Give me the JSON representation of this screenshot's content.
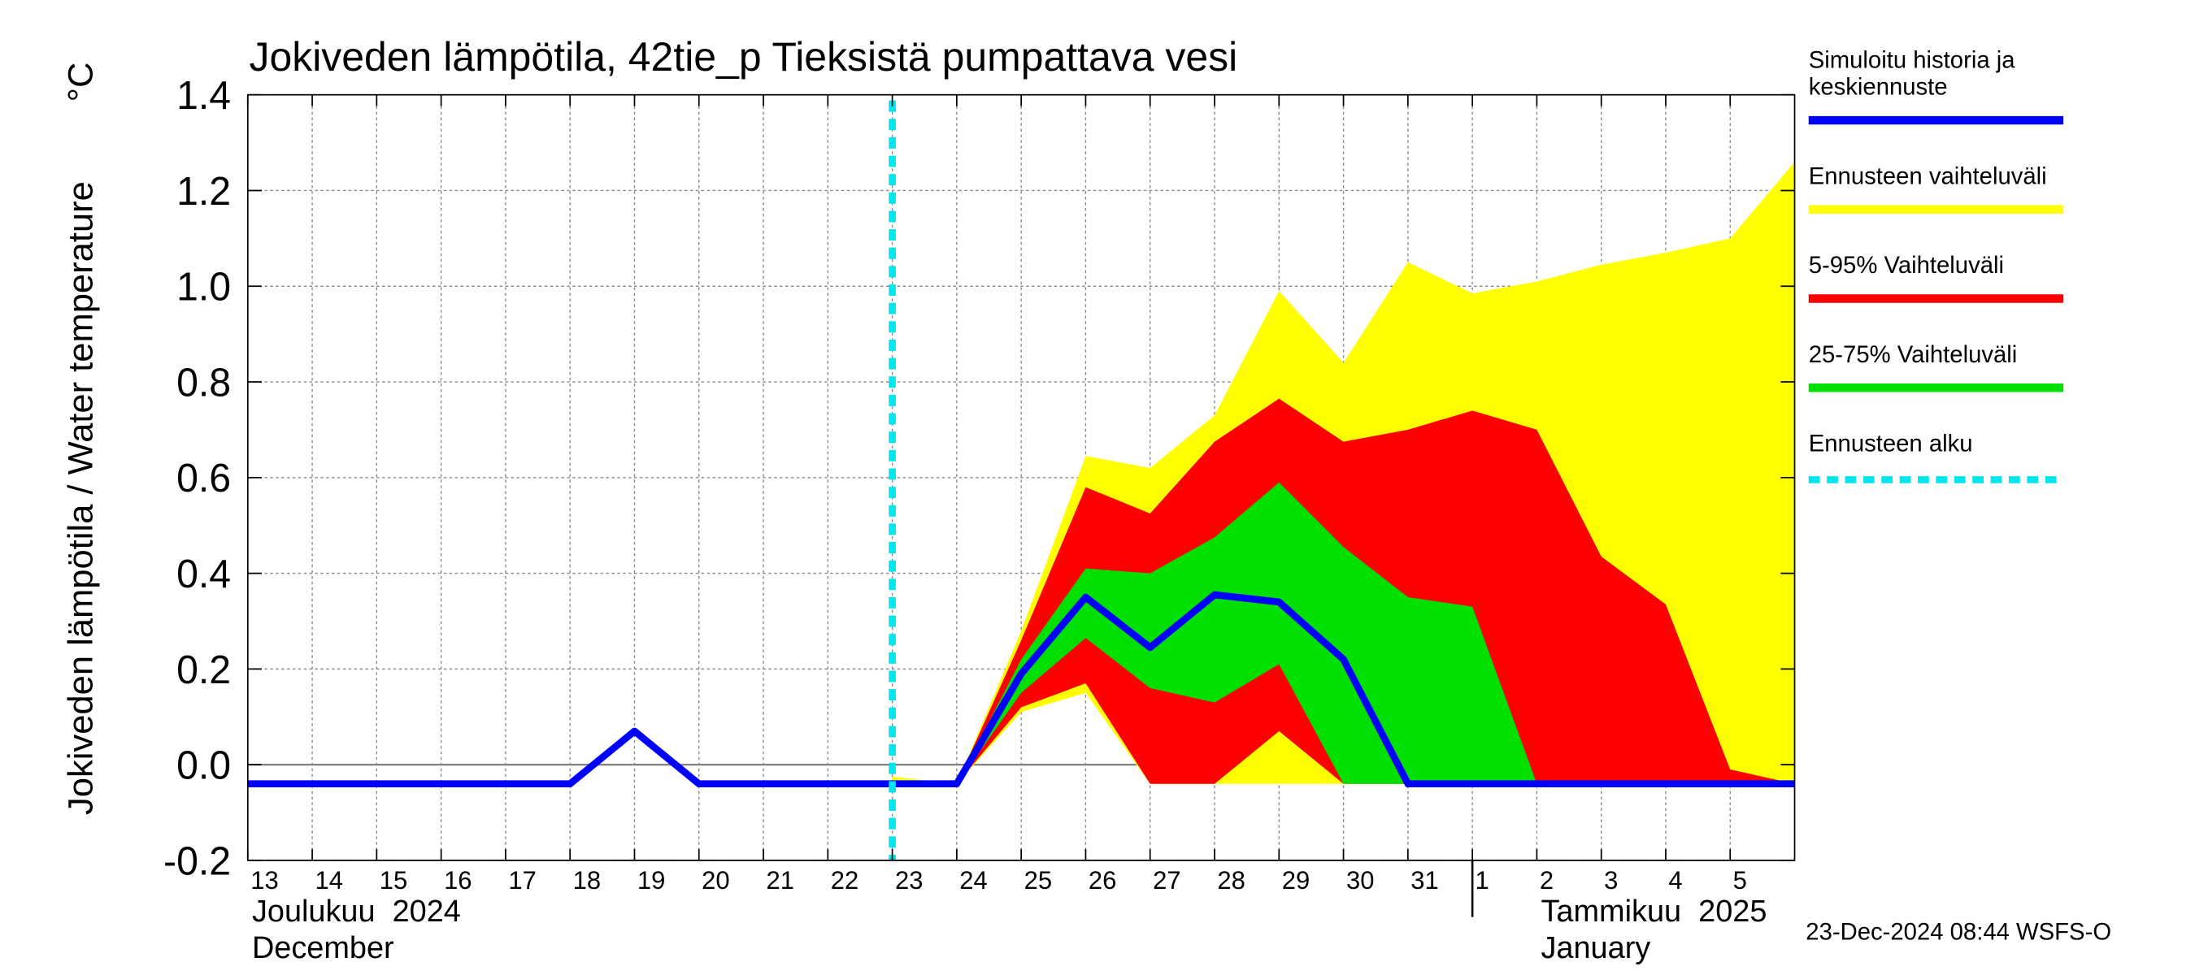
{
  "chart_data": {
    "type": "band",
    "title": "Jokiveden lämpötila, 42tie_p Tieksistä pumpattava vesi",
    "ylabel": "Jokiveden lämpötila / Water temperature",
    "yunit": "°C",
    "footer": "23-Dec-2024 08:44 WSFS-O",
    "x": [
      "2024-12-13",
      "2024-12-14",
      "2024-12-15",
      "2024-12-16",
      "2024-12-17",
      "2024-12-18",
      "2024-12-19",
      "2024-12-20",
      "2024-12-21",
      "2024-12-22",
      "2024-12-23",
      "2024-12-24",
      "2024-12-25",
      "2024-12-26",
      "2024-12-27",
      "2024-12-28",
      "2024-12-29",
      "2024-12-30",
      "2024-12-31",
      "2025-01-01",
      "2025-01-02",
      "2025-01-03",
      "2025-01-04",
      "2025-01-05",
      "2025-01-06"
    ],
    "xlim": [
      "2024-12-13",
      "2025-01-06"
    ],
    "xticks": [
      {
        "value": "2024-12-13",
        "label": "13"
      },
      {
        "value": "2024-12-14",
        "label": "14"
      },
      {
        "value": "2024-12-15",
        "label": "15"
      },
      {
        "value": "2024-12-16",
        "label": "16"
      },
      {
        "value": "2024-12-17",
        "label": "17"
      },
      {
        "value": "2024-12-18",
        "label": "18"
      },
      {
        "value": "2024-12-19",
        "label": "19"
      },
      {
        "value": "2024-12-20",
        "label": "20"
      },
      {
        "value": "2024-12-21",
        "label": "21"
      },
      {
        "value": "2024-12-22",
        "label": "22"
      },
      {
        "value": "2024-12-23",
        "label": "23"
      },
      {
        "value": "2024-12-24",
        "label": "24"
      },
      {
        "value": "2024-12-25",
        "label": "25"
      },
      {
        "value": "2024-12-26",
        "label": "26"
      },
      {
        "value": "2024-12-27",
        "label": "27"
      },
      {
        "value": "2024-12-28",
        "label": "28"
      },
      {
        "value": "2024-12-29",
        "label": "29"
      },
      {
        "value": "2024-12-30",
        "label": "30"
      },
      {
        "value": "2024-12-31",
        "label": "31"
      },
      {
        "value": "2025-01-01",
        "label": "1"
      },
      {
        "value": "2025-01-02",
        "label": "2"
      },
      {
        "value": "2025-01-03",
        "label": "3"
      },
      {
        "value": "2025-01-04",
        "label": "4"
      },
      {
        "value": "2025-01-05",
        "label": "5"
      }
    ],
    "month_labels": [
      {
        "date": "2024-12-13",
        "label": "Joulukuu  2024",
        "label_en": "December"
      },
      {
        "date": "2025-01-01",
        "label": "Tammikuu  2025",
        "label_en": "January"
      }
    ],
    "ylim": [
      -0.2,
      1.4
    ],
    "yticks": [
      -0.2,
      {
        "value": 0,
        "label": "0.0"
      },
      0.2,
      0.4,
      0.6,
      0.8,
      {
        "value": 1,
        "label": "1.0"
      },
      1.2,
      1.4
    ],
    "grid": true,
    "forecast_start": {
      "name": "Ennusteen alku",
      "color": "#00e5ee",
      "x": "2024-12-23"
    },
    "series": [
      {
        "name": "Simuloitu historia ja\nkeskiennuste",
        "color": "#0000ff",
        "values": [
          -0.04,
          -0.04,
          -0.04,
          -0.04,
          -0.04,
          -0.04,
          0.07,
          -0.04,
          -0.04,
          -0.04,
          -0.04,
          -0.04,
          0.19,
          0.35,
          0.245,
          0.355,
          0.34,
          0.22,
          -0.04,
          -0.04,
          -0.04,
          -0.04,
          -0.04,
          -0.04,
          -0.04
        ]
      },
      {
        "name": "Ennusteen vaihteluväli",
        "color": "#ffff00",
        "values": [
          null,
          null,
          null,
          null,
          null,
          null,
          null,
          null,
          null,
          null,
          -0.025,
          -0.04,
          0.28,
          0.645,
          0.62,
          0.73,
          0.99,
          0.84,
          1.05,
          0.985,
          1.01,
          1.045,
          1.07,
          1.1,
          1.26
        ],
        "low": [
          null,
          null,
          null,
          null,
          null,
          null,
          null,
          null,
          null,
          null,
          -0.04,
          -0.04,
          0.11,
          0.15,
          -0.04,
          -0.04,
          -0.04,
          -0.04,
          -0.04,
          -0.04,
          -0.04,
          -0.04,
          -0.04,
          -0.04,
          -0.04
        ]
      },
      {
        "name": "5-95% Vaihteluväli",
        "color": "#ff0000",
        "values": [
          null,
          null,
          null,
          null,
          null,
          null,
          null,
          null,
          null,
          null,
          null,
          -0.04,
          0.26,
          0.58,
          0.525,
          0.675,
          0.765,
          0.675,
          0.7,
          0.74,
          0.7,
          0.435,
          0.335,
          -0.01,
          -0.04
        ],
        "low": [
          null,
          null,
          null,
          null,
          null,
          null,
          null,
          null,
          null,
          null,
          null,
          -0.04,
          0.12,
          0.17,
          -0.04,
          -0.04,
          0.07,
          -0.04,
          -0.04,
          -0.04,
          -0.04,
          -0.04,
          -0.04,
          -0.04,
          -0.04
        ]
      },
      {
        "name": "25-75% Vaihteluväli",
        "color": "#00e000",
        "values": [
          null,
          null,
          null,
          null,
          null,
          null,
          null,
          null,
          null,
          null,
          null,
          -0.04,
          0.22,
          0.41,
          0.4,
          0.475,
          0.59,
          0.455,
          0.35,
          0.33,
          -0.04,
          null,
          null,
          null,
          null
        ],
        "low": [
          null,
          null,
          null,
          null,
          null,
          null,
          null,
          null,
          null,
          null,
          null,
          -0.04,
          0.15,
          0.265,
          0.16,
          0.13,
          0.21,
          -0.04,
          -0.04,
          -0.04,
          -0.04,
          null,
          null,
          null,
          null
        ]
      }
    ]
  }
}
